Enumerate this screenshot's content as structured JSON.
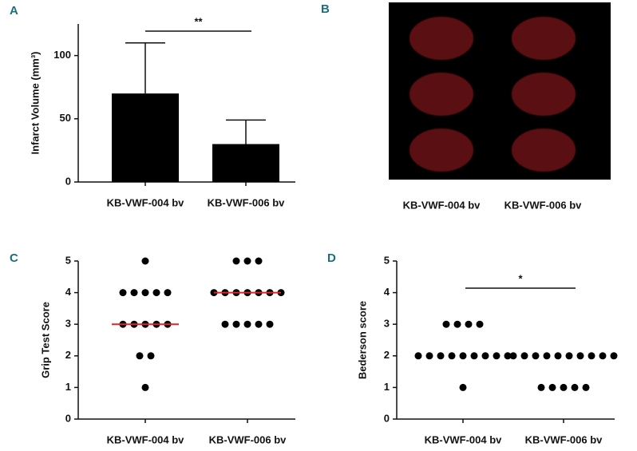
{
  "chart_data": [
    {
      "type": "bar",
      "panel": "A",
      "categories": [
        "KB-VWF-004 bv",
        "KB-VWF-006 bv"
      ],
      "values": [
        70,
        30
      ],
      "errors": [
        40,
        19
      ],
      "color": "#000000",
      "ylabel": "Infarct Volume (mm³)",
      "ylim": [
        0,
        125
      ],
      "yticks": [
        0,
        50,
        100
      ],
      "annotation": "**"
    },
    {
      "type": "image",
      "panel": "B",
      "categories": [
        "KB-VWF-004 bv",
        "KB-VWF-006 bv"
      ]
    },
    {
      "type": "dot",
      "panel": "C",
      "categories": [
        "KB-VWF-004 bv",
        "KB-VWF-006 bv"
      ],
      "ylabel": "Grip Test Score",
      "values": [
        [
          5,
          4,
          4,
          4,
          4,
          4,
          3,
          3,
          3,
          3,
          3,
          2,
          2,
          1
        ],
        [
          5,
          5,
          5,
          4,
          4,
          4,
          4,
          4,
          4,
          4,
          3,
          3,
          3,
          3,
          3
        ]
      ],
      "medians": [
        3,
        4
      ],
      "median_color": "#e8202a",
      "color": "#000000",
      "ylim": [
        0,
        5
      ],
      "yticks": [
        0,
        1,
        2,
        3,
        4,
        5
      ]
    },
    {
      "type": "dot",
      "panel": "D",
      "categories": [
        "KB-VWF-004 bv",
        "KB-VWF-006 bv"
      ],
      "ylabel": "Bederson score",
      "values": [
        [
          3,
          3,
          3,
          3,
          2,
          2,
          2,
          2,
          2,
          2,
          2,
          2,
          2,
          1
        ],
        [
          2,
          2,
          2,
          2,
          2,
          2,
          2,
          2,
          2,
          2,
          1,
          1,
          1,
          1,
          1
        ]
      ],
      "color": "#000000",
      "ylim": [
        0,
        5
      ],
      "yticks": [
        0,
        1,
        2,
        3,
        4,
        5
      ],
      "annotation": "*"
    }
  ]
}
